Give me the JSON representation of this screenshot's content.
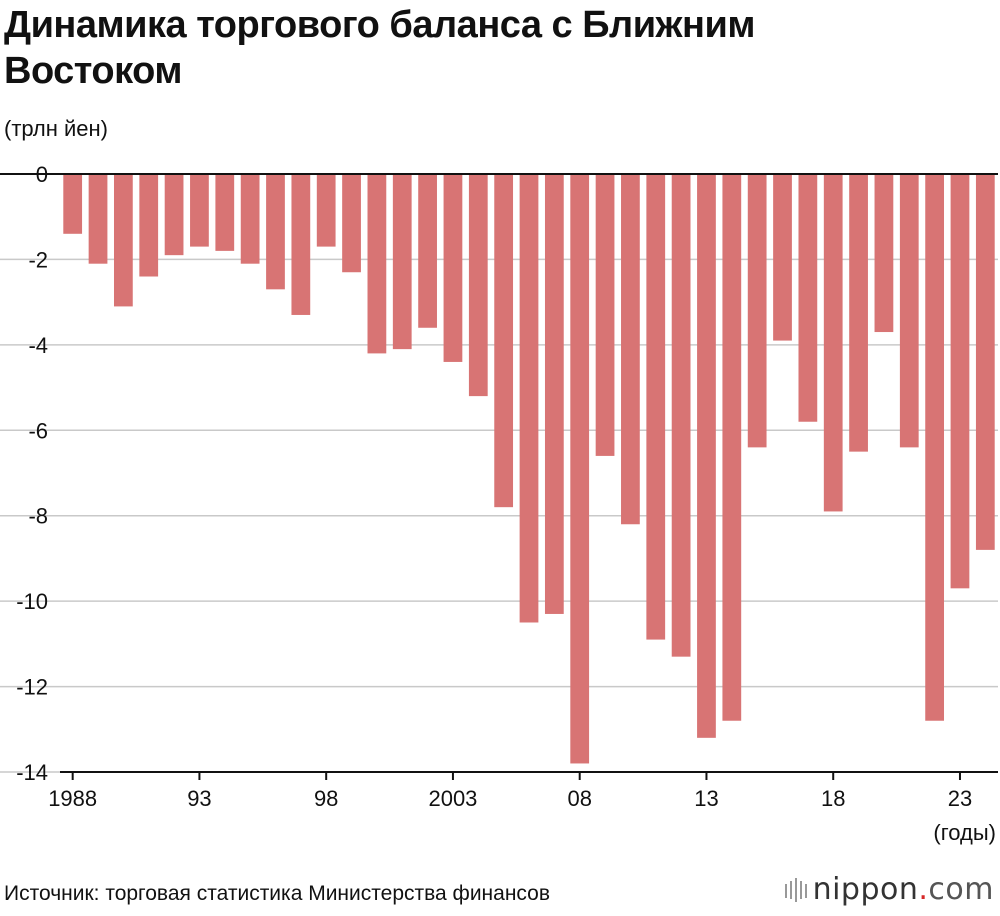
{
  "header": {
    "title": "Динамика торгового баланса с Ближним Востоком"
  },
  "chart_data": {
    "type": "bar",
    "title": "Динамика торгового баланса с Ближним Востоком",
    "ylabel": "(трлн йен)",
    "xlabel": "(годы)",
    "ylim": [
      -14,
      0
    ],
    "yticks": [
      0,
      -2,
      -4,
      -6,
      -8,
      -10,
      -12,
      -14
    ],
    "grid": true,
    "bar_color": "#d87474",
    "categories": [
      "1988",
      "1989",
      "1990",
      "1991",
      "1992",
      "1993",
      "1994",
      "1995",
      "1996",
      "1997",
      "1998",
      "1999",
      "2000",
      "2001",
      "2002",
      "2003",
      "2004",
      "2005",
      "2006",
      "2007",
      "2008",
      "2009",
      "2010",
      "2011",
      "2012",
      "2013",
      "2014",
      "2015",
      "2016",
      "2017",
      "2018",
      "2019",
      "2020",
      "2021",
      "2022",
      "2023",
      "2024"
    ],
    "x_tick_labels": [
      {
        "category": "1988",
        "label": "1988"
      },
      {
        "category": "1993",
        "label": "93"
      },
      {
        "category": "1998",
        "label": "98"
      },
      {
        "category": "2003",
        "label": "2003"
      },
      {
        "category": "2008",
        "label": "08"
      },
      {
        "category": "2013",
        "label": "13"
      },
      {
        "category": "2018",
        "label": "18"
      },
      {
        "category": "2023",
        "label": "23"
      }
    ],
    "values": [
      -1.4,
      -2.1,
      -3.1,
      -2.4,
      -1.9,
      -1.7,
      -1.8,
      -2.1,
      -2.7,
      -3.3,
      -1.7,
      -2.3,
      -4.2,
      -4.1,
      -3.6,
      -4.4,
      -5.2,
      -7.8,
      -10.5,
      -10.3,
      -13.8,
      -6.6,
      -8.2,
      -10.9,
      -11.3,
      -13.2,
      -12.8,
      -6.4,
      -3.9,
      -5.8,
      -7.9,
      -6.5,
      -3.7,
      -6.4,
      -12.8,
      -9.7,
      -8.8
    ]
  },
  "footer": {
    "source": "Источник: торговая статистика Министерства финансов",
    "logo_name": "nippon",
    "logo_dot": ".",
    "logo_domain": "com"
  }
}
